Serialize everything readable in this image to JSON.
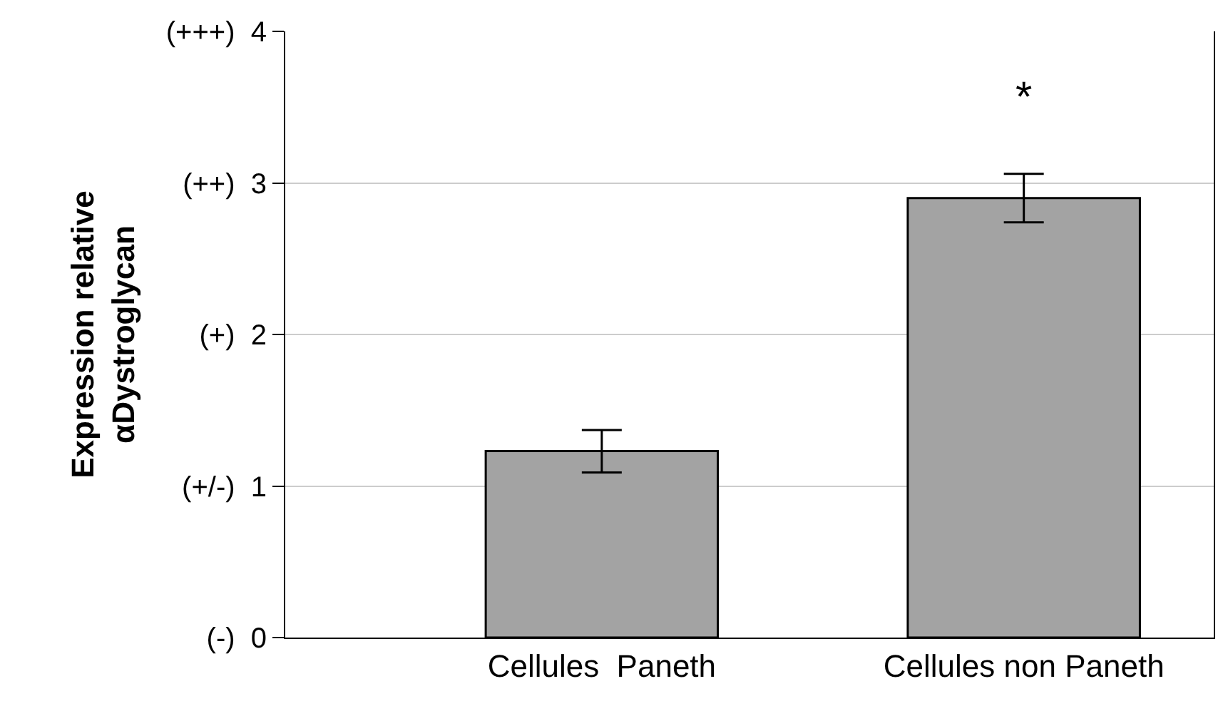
{
  "chart_data": {
    "type": "bar",
    "ylabel": "Expression relative\nαDystroglycan",
    "categories": [
      "Cellules  Paneth",
      "Cellules non Paneth"
    ],
    "values": [
      1.23,
      2.9
    ],
    "errors": [
      0.14,
      0.16
    ],
    "color": "#a3a3a3",
    "ylim": [
      0,
      4
    ],
    "yticks": [
      {
        "value": 0,
        "label": "(-)  0"
      },
      {
        "value": 1,
        "label": "(+/-)  1"
      },
      {
        "value": 2,
        "label": "(+)  2"
      },
      {
        "value": 3,
        "label": "(++)  3"
      },
      {
        "value": 4,
        "label": "(+++)  4"
      }
    ],
    "grid": "y",
    "annotations": [
      "*"
    ]
  }
}
